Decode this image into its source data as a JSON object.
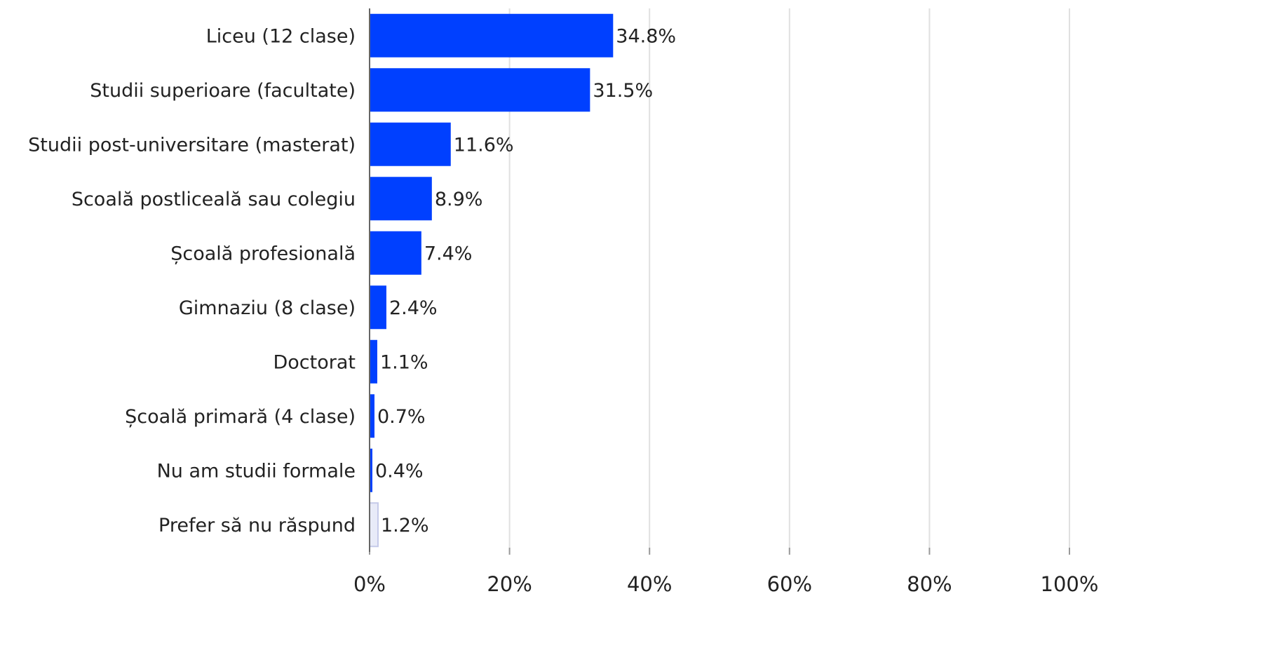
{
  "chart_data": {
    "type": "bar",
    "orientation": "horizontal",
    "categories": [
      "Liceu (12 clase)",
      "Studii superioare (facultate)",
      "Studii post-universitare (masterat)",
      "Scoală postliceală sau colegiu",
      "Școală profesională",
      "Gimnaziu (8 clase)",
      "Doctorat",
      "Școală primară (4 clase)",
      "Nu am studii formale",
      "Prefer să nu răspund"
    ],
    "values": [
      34.8,
      31.5,
      11.6,
      8.9,
      7.4,
      2.4,
      1.1,
      0.7,
      0.4,
      1.2
    ],
    "value_labels": [
      "34.8%",
      "31.5%",
      "11.6%",
      "8.9%",
      "7.4%",
      "2.4%",
      "1.1%",
      "0.7%",
      "0.4%",
      "1.2%"
    ],
    "colors": [
      "#0040ff",
      "#0040ff",
      "#0040ff",
      "#0040ff",
      "#0040ff",
      "#0040ff",
      "#0040ff",
      "#0040ff",
      "#0040ff",
      "#e8ebf8"
    ],
    "xlim": [
      0,
      100
    ],
    "xticks": [
      {
        "value": 0,
        "label": "0%"
      },
      {
        "value": 20,
        "label": "20%"
      },
      {
        "value": 40,
        "label": "40%"
      },
      {
        "value": 60,
        "label": "60%"
      },
      {
        "value": 80,
        "label": "80%"
      },
      {
        "value": 100,
        "label": "100%"
      }
    ],
    "grid": true
  }
}
